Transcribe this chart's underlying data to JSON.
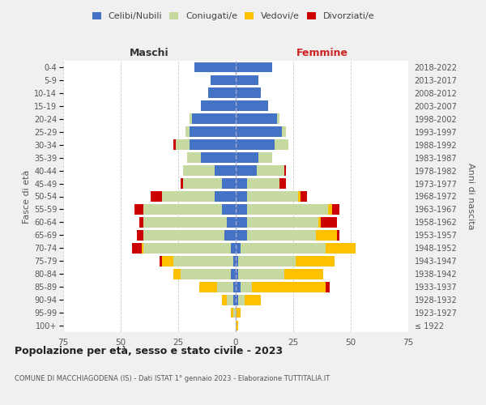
{
  "age_groups": [
    "100+",
    "95-99",
    "90-94",
    "85-89",
    "80-84",
    "75-79",
    "70-74",
    "65-69",
    "60-64",
    "55-59",
    "50-54",
    "45-49",
    "40-44",
    "35-39",
    "30-34",
    "25-29",
    "20-24",
    "15-19",
    "10-14",
    "5-9",
    "0-4"
  ],
  "birth_years": [
    "≤ 1922",
    "1923-1927",
    "1928-1932",
    "1933-1937",
    "1938-1942",
    "1943-1947",
    "1948-1952",
    "1953-1957",
    "1958-1962",
    "1963-1967",
    "1968-1972",
    "1973-1977",
    "1978-1982",
    "1983-1987",
    "1988-1992",
    "1993-1997",
    "1998-2002",
    "2003-2007",
    "2008-2012",
    "2013-2017",
    "2018-2022"
  ],
  "males": {
    "celibi": [
      0,
      0,
      1,
      1,
      2,
      1,
      2,
      5,
      4,
      6,
      9,
      6,
      9,
      15,
      20,
      20,
      19,
      15,
      12,
      11,
      18
    ],
    "coniugati": [
      0,
      1,
      3,
      7,
      22,
      26,
      38,
      35,
      36,
      34,
      23,
      17,
      14,
      6,
      6,
      2,
      1,
      0,
      0,
      0,
      0
    ],
    "vedovi": [
      0,
      1,
      2,
      8,
      3,
      5,
      1,
      0,
      0,
      0,
      0,
      0,
      0,
      0,
      0,
      0,
      0,
      0,
      0,
      0,
      0
    ],
    "divorziati": [
      0,
      0,
      0,
      0,
      0,
      1,
      4,
      3,
      2,
      4,
      5,
      1,
      0,
      0,
      1,
      0,
      0,
      0,
      0,
      0,
      0
    ]
  },
  "females": {
    "nubili": [
      0,
      0,
      1,
      2,
      1,
      1,
      2,
      5,
      5,
      5,
      5,
      5,
      9,
      10,
      17,
      20,
      18,
      14,
      11,
      10,
      16
    ],
    "coniugate": [
      0,
      0,
      3,
      5,
      20,
      25,
      37,
      30,
      31,
      35,
      22,
      14,
      12,
      6,
      6,
      2,
      1,
      0,
      0,
      0,
      0
    ],
    "vedove": [
      1,
      2,
      7,
      32,
      17,
      17,
      13,
      9,
      1,
      2,
      1,
      0,
      0,
      0,
      0,
      0,
      0,
      0,
      0,
      0,
      0
    ],
    "divorziate": [
      0,
      0,
      0,
      2,
      0,
      0,
      0,
      1,
      7,
      3,
      3,
      3,
      1,
      0,
      0,
      0,
      0,
      0,
      0,
      0,
      0
    ]
  },
  "colors": {
    "celibi": "#4472c4",
    "coniugati": "#c5d9a0",
    "vedovi": "#ffc000",
    "divorziati": "#cc0000"
  },
  "title": "Popolazione per età, sesso e stato civile - 2023",
  "subtitle": "COMUNE DI MACCHIAGODENA (IS) - Dati ISTAT 1° gennaio 2023 - Elaborazione TUTTITALIA.IT",
  "xlabel_left": "Maschi",
  "xlabel_right": "Femmine",
  "ylabel_left": "Fasce di età",
  "ylabel_right": "Anni di nascita",
  "xlim": 75,
  "background_color": "#f0f0f0",
  "plot_bg": "#ffffff",
  "legend_labels": [
    "Celibi/Nubili",
    "Coniugati/e",
    "Vedovi/e",
    "Divorziati/e"
  ]
}
